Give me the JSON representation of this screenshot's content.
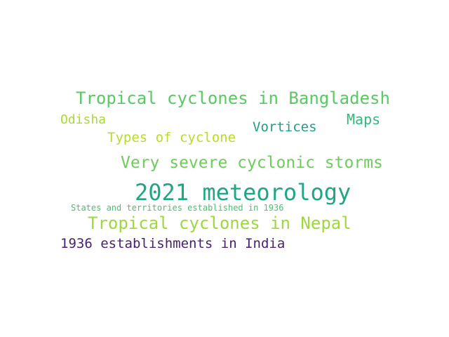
{
  "wordcloud": {
    "words": [
      {
        "text": "Tropical cyclones in Bangladesh",
        "color": "#5ac864"
      },
      {
        "text": "Odisha",
        "color": "#a8db34"
      },
      {
        "text": "Maps",
        "color": "#35b779"
      },
      {
        "text": "Vortices",
        "color": "#1f9e89"
      },
      {
        "text": "Types of cyclone",
        "color": "#b5de2b"
      },
      {
        "text": "Very severe cyclonic storms",
        "color": "#6ccd5a"
      },
      {
        "text": "2021 meteorology",
        "color": "#21a685"
      },
      {
        "text": "States and territories established in 1936",
        "color": "#4ac16d"
      },
      {
        "text": "Tropical cyclones in Nepal",
        "color": "#9bd93c"
      },
      {
        "text": "1936 establishments in India",
        "color": "#481f70"
      }
    ]
  }
}
